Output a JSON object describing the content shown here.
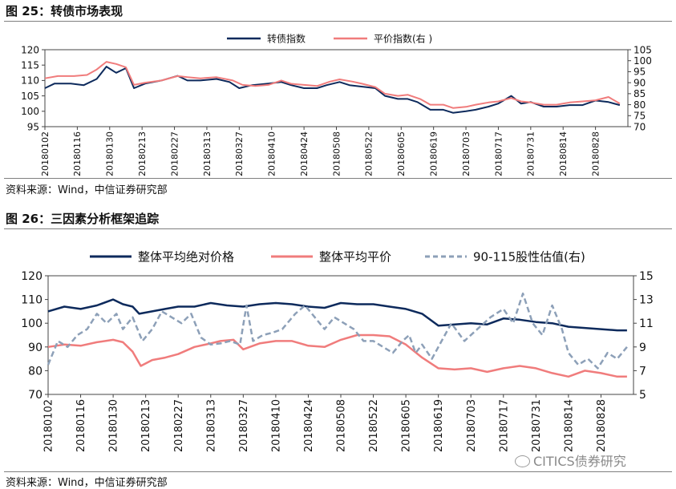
{
  "fig1": {
    "title": "图 25：转债市场表现",
    "source": "资料来源：Wind，中信证券研究部"
  },
  "fig2": {
    "title": "图 26：三因素分析框架追踪",
    "source": "资料来源：Wind，中信证券研究部"
  },
  "watermark": "CITICS债券研究",
  "colors": {
    "navy": "#0d2a5c",
    "salmon": "#f07c7c",
    "gray": "#8da0b8"
  },
  "chart_data": [
    {
      "type": "line",
      "x": [
        "20180102",
        "20180116",
        "20180130",
        "20180213",
        "20180227",
        "20180313",
        "20180327",
        "20180410",
        "20180424",
        "20180508",
        "20180522",
        "20180605",
        "20180619",
        "20180703",
        "20180717",
        "20180731",
        "20180814",
        "20180828"
      ],
      "ylim": [
        95,
        120
      ],
      "yticks": [
        95,
        100,
        105,
        110,
        115,
        120
      ],
      "y2lim": [
        70,
        105
      ],
      "y2ticks": [
        70,
        75,
        80,
        85,
        90,
        95,
        100,
        105
      ],
      "legend": "top-center",
      "series": [
        {
          "name": "转债指数",
          "axis": "left",
          "color": "#0d2a5c",
          "values": [
            [
              0,
              107.5
            ],
            [
              0.3,
              109
            ],
            [
              0.8,
              109
            ],
            [
              1.2,
              108.5
            ],
            [
              1.6,
              110.5
            ],
            [
              1.9,
              114.5
            ],
            [
              2.2,
              112.5
            ],
            [
              2.5,
              114
            ],
            [
              2.75,
              107.5
            ],
            [
              3.1,
              109
            ],
            [
              3.6,
              110
            ],
            [
              4.1,
              111.5
            ],
            [
              4.4,
              110
            ],
            [
              4.8,
              110
            ],
            [
              5.3,
              110.5
            ],
            [
              5.7,
              109.5
            ],
            [
              6.0,
              107.5
            ],
            [
              6.4,
              108.5
            ],
            [
              6.9,
              109
            ],
            [
              7.3,
              109.5
            ],
            [
              7.6,
              108.5
            ],
            [
              8.0,
              107.5
            ],
            [
              8.4,
              107.5
            ],
            [
              8.7,
              108.5
            ],
            [
              9.1,
              109.5
            ],
            [
              9.4,
              108.5
            ],
            [
              9.8,
              108
            ],
            [
              10.2,
              107.5
            ],
            [
              10.5,
              105
            ],
            [
              10.9,
              104
            ],
            [
              11.2,
              104
            ],
            [
              11.5,
              103
            ],
            [
              11.9,
              100.5
            ],
            [
              12.3,
              100.5
            ],
            [
              12.6,
              99.5
            ],
            [
              13.0,
              100
            ],
            [
              13.3,
              100.5
            ],
            [
              13.7,
              101.5
            ],
            [
              14.0,
              102.5
            ],
            [
              14.4,
              105
            ],
            [
              14.7,
              102.5
            ],
            [
              15.0,
              103
            ],
            [
              15.4,
              101.5
            ],
            [
              15.8,
              101.5
            ],
            [
              16.2,
              102
            ],
            [
              16.6,
              102
            ],
            [
              17.0,
              103.5
            ],
            [
              17.4,
              103
            ],
            [
              17.75,
              102
            ]
          ]
        },
        {
          "name": "平价指数(右 )",
          "axis": "right",
          "color": "#f07c7c",
          "values": [
            [
              0,
              92
            ],
            [
              0.4,
              93
            ],
            [
              0.9,
              93
            ],
            [
              1.3,
              93.5
            ],
            [
              1.6,
              96
            ],
            [
              1.9,
              99.5
            ],
            [
              2.2,
              98.5
            ],
            [
              2.5,
              97
            ],
            [
              2.75,
              89
            ],
            [
              3.1,
              90
            ],
            [
              3.6,
              91
            ],
            [
              4.1,
              93
            ],
            [
              4.4,
              92.5
            ],
            [
              4.8,
              92
            ],
            [
              5.3,
              92.5
            ],
            [
              5.8,
              91
            ],
            [
              6.1,
              89
            ],
            [
              6.5,
              88.5
            ],
            [
              6.9,
              89
            ],
            [
              7.3,
              91
            ],
            [
              7.6,
              89.5
            ],
            [
              8.0,
              89
            ],
            [
              8.4,
              88.5
            ],
            [
              8.8,
              90.5
            ],
            [
              9.1,
              91.5
            ],
            [
              9.5,
              90.5
            ],
            [
              9.8,
              89.5
            ],
            [
              10.2,
              88
            ],
            [
              10.5,
              85
            ],
            [
              10.9,
              84
            ],
            [
              11.2,
              84.5
            ],
            [
              11.6,
              82.5
            ],
            [
              11.9,
              80
            ],
            [
              12.3,
              80
            ],
            [
              12.6,
              78.5
            ],
            [
              13.0,
              79
            ],
            [
              13.3,
              80
            ],
            [
              13.7,
              81
            ],
            [
              14.0,
              81.5
            ],
            [
              14.4,
              83
            ],
            [
              14.7,
              81.5
            ],
            [
              15.0,
              81
            ],
            [
              15.4,
              80
            ],
            [
              15.8,
              80
            ],
            [
              16.2,
              81
            ],
            [
              16.6,
              81.5
            ],
            [
              17.0,
              82
            ],
            [
              17.4,
              83.5
            ],
            [
              17.75,
              80.5
            ]
          ]
        }
      ]
    },
    {
      "type": "line",
      "x": [
        "20180102",
        "20180116",
        "20180130",
        "20180213",
        "20180227",
        "20180313",
        "20180327",
        "20180410",
        "20180424",
        "20180508",
        "20180522",
        "20180605",
        "20180619",
        "20180703",
        "20180717",
        "20180731",
        "20180814",
        "20180828"
      ],
      "ylim": [
        70,
        120
      ],
      "yticks": [
        70,
        80,
        90,
        100,
        110,
        120
      ],
      "y2lim": [
        5,
        15
      ],
      "y2ticks": [
        5,
        7,
        9,
        11,
        13,
        15
      ],
      "legend": "top-center",
      "series": [
        {
          "name": "整体平均绝对价格",
          "axis": "left",
          "color": "#0d2a5c",
          "dash": false,
          "values": [
            [
              0,
              105
            ],
            [
              0.5,
              107
            ],
            [
              1.0,
              106
            ],
            [
              1.5,
              107.5
            ],
            [
              2.0,
              110
            ],
            [
              2.3,
              108
            ],
            [
              2.6,
              107
            ],
            [
              2.8,
              104
            ],
            [
              3.2,
              105
            ],
            [
              3.6,
              106
            ],
            [
              4.0,
              107
            ],
            [
              4.5,
              107
            ],
            [
              5.0,
              108.5
            ],
            [
              5.5,
              107.5
            ],
            [
              6.0,
              107
            ],
            [
              6.5,
              108
            ],
            [
              7.0,
              108.5
            ],
            [
              7.5,
              108
            ],
            [
              8.0,
              107
            ],
            [
              8.5,
              106.5
            ],
            [
              9.0,
              108.5
            ],
            [
              9.5,
              108
            ],
            [
              10.0,
              108
            ],
            [
              10.5,
              107
            ],
            [
              11.0,
              106
            ],
            [
              11.5,
              104
            ],
            [
              12.0,
              99
            ],
            [
              12.5,
              99.5
            ],
            [
              13.0,
              100
            ],
            [
              13.5,
              99.5
            ],
            [
              14.0,
              102
            ],
            [
              14.5,
              101.5
            ],
            [
              15.0,
              100.5
            ],
            [
              15.5,
              100
            ],
            [
              16.0,
              98.5
            ],
            [
              16.5,
              98
            ],
            [
              17.0,
              97.5
            ],
            [
              17.5,
              97
            ],
            [
              17.8,
              97
            ]
          ]
        },
        {
          "name": "整体平均平价",
          "axis": "left",
          "color": "#f07c7c",
          "dash": false,
          "values": [
            [
              0,
              90
            ],
            [
              0.5,
              91
            ],
            [
              1.0,
              90.5
            ],
            [
              1.5,
              92
            ],
            [
              2.0,
              93
            ],
            [
              2.3,
              92
            ],
            [
              2.6,
              88
            ],
            [
              2.85,
              82
            ],
            [
              3.2,
              84.5
            ],
            [
              3.6,
              85.5
            ],
            [
              4.0,
              87
            ],
            [
              4.5,
              90
            ],
            [
              5.0,
              91.5
            ],
            [
              5.3,
              92.5
            ],
            [
              5.7,
              93
            ],
            [
              6.0,
              89
            ],
            [
              6.5,
              91.5
            ],
            [
              7.0,
              92.5
            ],
            [
              7.5,
              92.5
            ],
            [
              8.0,
              90.5
            ],
            [
              8.5,
              90
            ],
            [
              9.0,
              93
            ],
            [
              9.5,
              95
            ],
            [
              10.0,
              95
            ],
            [
              10.5,
              94.5
            ],
            [
              11.0,
              91
            ],
            [
              11.5,
              85.5
            ],
            [
              12.0,
              81
            ],
            [
              12.5,
              80.5
            ],
            [
              13.0,
              81
            ],
            [
              13.5,
              79.5
            ],
            [
              14.0,
              81
            ],
            [
              14.5,
              82
            ],
            [
              15.0,
              81
            ],
            [
              15.5,
              79
            ],
            [
              16.0,
              77.5
            ],
            [
              16.5,
              80
            ],
            [
              17.0,
              79
            ],
            [
              17.5,
              77.5
            ],
            [
              17.8,
              77.5
            ]
          ]
        },
        {
          "name": "90-115股性估值(右)",
          "axis": "right",
          "color": "#8da0b8",
          "dash": true,
          "values": [
            [
              0,
              7.5
            ],
            [
              0.3,
              9.5
            ],
            [
              0.6,
              9
            ],
            [
              0.9,
              10
            ],
            [
              1.2,
              10.5
            ],
            [
              1.5,
              11.8
            ],
            [
              1.8,
              11
            ],
            [
              2.1,
              11.8
            ],
            [
              2.3,
              10.5
            ],
            [
              2.6,
              11.5
            ],
            [
              2.9,
              9.5
            ],
            [
              3.2,
              10.5
            ],
            [
              3.5,
              12
            ],
            [
              3.8,
              11.5
            ],
            [
              4.1,
              11
            ],
            [
              4.4,
              11.8
            ],
            [
              4.7,
              9.8
            ],
            [
              5.0,
              9.2
            ],
            [
              5.3,
              9.3
            ],
            [
              5.6,
              9.5
            ],
            [
              5.9,
              9.2
            ],
            [
              6.1,
              12.5
            ],
            [
              6.3,
              9.5
            ],
            [
              6.6,
              10
            ],
            [
              6.9,
              10.2
            ],
            [
              7.2,
              10.5
            ],
            [
              7.6,
              11.8
            ],
            [
              7.9,
              12.5
            ],
            [
              8.2,
              11.5
            ],
            [
              8.5,
              10.5
            ],
            [
              8.8,
              11.5
            ],
            [
              9.1,
              11
            ],
            [
              9.4,
              10.5
            ],
            [
              9.7,
              9.5
            ],
            [
              10.0,
              9.5
            ],
            [
              10.3,
              9
            ],
            [
              10.6,
              8.5
            ],
            [
              10.9,
              9.5
            ],
            [
              11.1,
              10
            ],
            [
              11.3,
              8.5
            ],
            [
              11.5,
              9.2
            ],
            [
              11.8,
              8
            ],
            [
              12.1,
              9.5
            ],
            [
              12.4,
              11
            ],
            [
              12.8,
              9.5
            ],
            [
              13.2,
              10.5
            ],
            [
              13.6,
              11.5
            ],
            [
              14.0,
              12.2
            ],
            [
              14.3,
              11
            ],
            [
              14.6,
              13.5
            ],
            [
              14.9,
              11
            ],
            [
              15.2,
              10
            ],
            [
              15.5,
              12.5
            ],
            [
              15.8,
              10.5
            ],
            [
              16.0,
              8.5
            ],
            [
              16.3,
              7.5
            ],
            [
              16.6,
              8
            ],
            [
              16.9,
              7.2
            ],
            [
              17.2,
              8.5
            ],
            [
              17.5,
              8
            ],
            [
              17.8,
              9
            ]
          ]
        }
      ]
    }
  ]
}
